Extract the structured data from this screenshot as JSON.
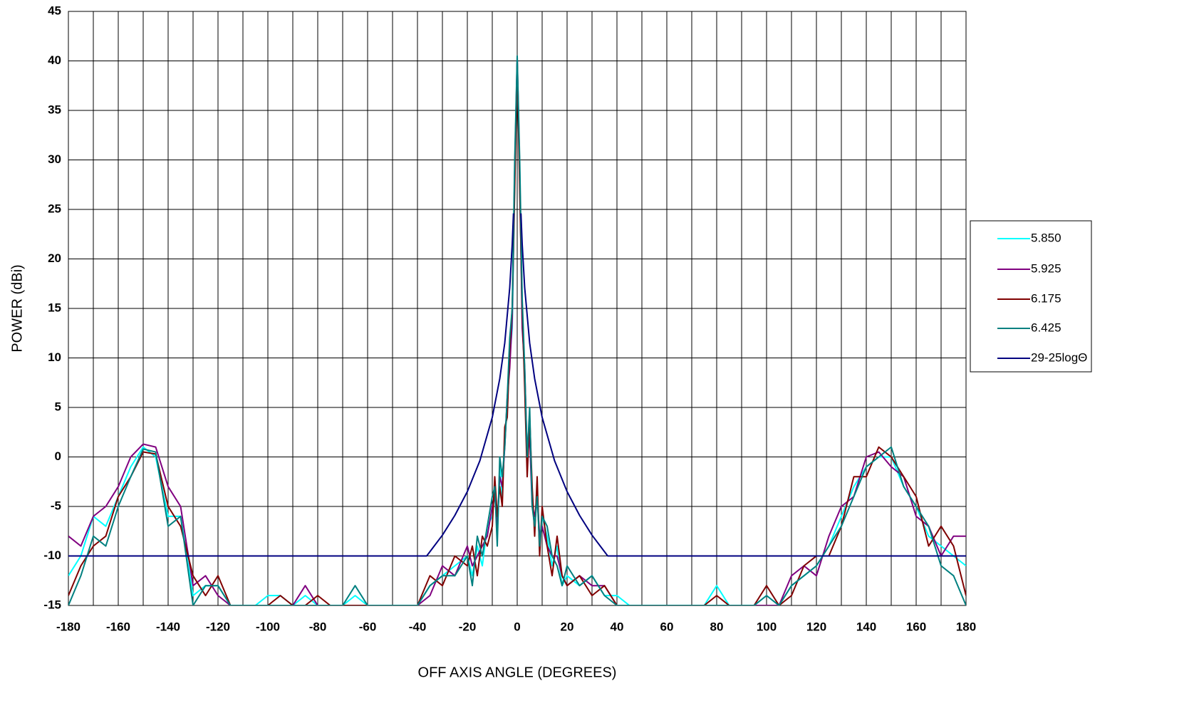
{
  "chart_data": {
    "type": "line",
    "x_label": "OFF AXIS ANGLE (DEGREES)",
    "y_label": "POWER (dBi)",
    "x": [
      -180,
      -175,
      -170,
      -165,
      -160,
      -155,
      -150,
      -145,
      -140,
      -135,
      -130,
      -125,
      -120,
      -115,
      -110,
      -105,
      -100,
      -95,
      -90,
      -85,
      -80,
      -75,
      -70,
      -65,
      -60,
      -55,
      -50,
      -45,
      -40,
      -35,
      -30,
      -25,
      -20,
      -18,
      -16,
      -14,
      -12,
      -10,
      -9,
      -8,
      -7,
      -6,
      -5,
      -4,
      -3,
      -2,
      -1,
      0,
      1,
      2,
      3,
      4,
      5,
      6,
      7,
      8,
      9,
      10,
      12,
      14,
      16,
      18,
      20,
      25,
      30,
      35,
      40,
      45,
      50,
      55,
      60,
      65,
      70,
      75,
      80,
      85,
      90,
      95,
      100,
      105,
      110,
      115,
      120,
      125,
      130,
      135,
      140,
      145,
      150,
      155,
      160,
      165,
      170,
      175,
      180
    ],
    "series": [
      {
        "name": "5.850",
        "color": "#00ffff",
        "values": [
          -12,
          -10,
          -6,
          -7,
          -4,
          -1,
          1,
          0,
          -6,
          -6,
          -14,
          -13,
          -13,
          -15,
          -15,
          -15,
          -14,
          -14,
          -15,
          -14,
          -15,
          -15,
          -15,
          -14,
          -15,
          -15,
          -15,
          -15,
          -15,
          -13,
          -12,
          -11,
          -10,
          -12,
          -9,
          -11,
          -7,
          -6,
          -3,
          -8,
          -1,
          -4,
          2,
          5,
          10,
          13,
          28,
          40,
          28,
          14,
          8,
          -1,
          3,
          -4,
          -7,
          -3,
          -9,
          -6,
          -8,
          -11,
          -9,
          -13,
          -12,
          -13,
          -12,
          -14,
          -14,
          -15,
          -15,
          -15,
          -15,
          -15,
          -15,
          -15,
          -13,
          -15,
          -15,
          -15,
          -14,
          -15,
          -13,
          -12,
          -11,
          -9,
          -6,
          -3,
          -1,
          0,
          0,
          -3,
          -5,
          -8,
          -9,
          -10,
          -11
        ]
      },
      {
        "name": "5.925",
        "color": "#800080",
        "values": [
          -8,
          -9,
          -6,
          -5,
          -3,
          0,
          1.3,
          1,
          -3,
          -5,
          -13,
          -12,
          -14,
          -15,
          -15,
          -15,
          -15,
          -15,
          -15,
          -13,
          -15,
          -15,
          -15,
          -15,
          -15,
          -15,
          -15,
          -15,
          -15,
          -14,
          -11,
          -12,
          -9,
          -11,
          -10,
          -9,
          -8,
          -5,
          -4,
          -7,
          -2,
          -3,
          1,
          6,
          9,
          14,
          29,
          40.3,
          29,
          13,
          9,
          0,
          2,
          -5,
          -6,
          -4,
          -8,
          -7,
          -9,
          -10,
          -10,
          -12,
          -13,
          -12,
          -13,
          -13,
          -15,
          -15,
          -15,
          -15,
          -15,
          -15,
          -15,
          -15,
          -15,
          -15,
          -15,
          -15,
          -15,
          -15,
          -12,
          -11,
          -12,
          -8,
          -5,
          -4,
          0,
          0.5,
          -1,
          -2,
          -6,
          -7,
          -10,
          -8,
          -8
        ]
      },
      {
        "name": "6.175",
        "color": "#800000",
        "values": [
          -14,
          -11,
          -9,
          -8,
          -4,
          -2,
          0.5,
          0.3,
          -5,
          -7,
          -12,
          -14,
          -12,
          -15,
          -15,
          -15,
          -15,
          -14,
          -15,
          -15,
          -14,
          -15,
          -15,
          -15,
          -15,
          -15,
          -15,
          -15,
          -15,
          -12,
          -13,
          -10,
          -11,
          -9,
          -12,
          -8,
          -9,
          -7,
          -2,
          -6,
          -3,
          -5,
          3,
          4,
          11,
          15,
          27,
          40,
          27,
          15,
          7,
          -2,
          4,
          -3,
          -8,
          -2,
          -10,
          -5,
          -9,
          -12,
          -8,
          -12,
          -13,
          -12,
          -14,
          -13,
          -15,
          -15,
          -15,
          -15,
          -15,
          -15,
          -15,
          -15,
          -14,
          -15,
          -15,
          -15,
          -13,
          -15,
          -14,
          -11,
          -10,
          -10,
          -7,
          -2,
          -2,
          1,
          0,
          -2,
          -4,
          -9,
          -7,
          -9,
          -14
        ]
      },
      {
        "name": "6.425",
        "color": "#008080",
        "values": [
          -15,
          -12,
          -8,
          -9,
          -5,
          -2,
          0.8,
          0.5,
          -7,
          -6,
          -15,
          -13,
          -13,
          -15,
          -15,
          -15,
          -15,
          -15,
          -15,
          -15,
          -15,
          -15,
          -15,
          -13,
          -15,
          -15,
          -15,
          -15,
          -15,
          -13,
          -12,
          -12,
          -10,
          -13,
          -8,
          -10,
          -7,
          -4,
          -3,
          -9,
          0,
          -2,
          1,
          6,
          12,
          15,
          30,
          40.5,
          30,
          16,
          9,
          0,
          5,
          -5,
          -7,
          -4,
          -9,
          -6,
          -7,
          -10,
          -11,
          -13,
          -11,
          -13,
          -12,
          -14,
          -15,
          -15,
          -15,
          -15,
          -15,
          -15,
          -15,
          -15,
          -15,
          -15,
          -15,
          -15,
          -14,
          -15,
          -13,
          -12,
          -11,
          -9,
          -7,
          -4,
          -1,
          0,
          1,
          -3,
          -5,
          -7,
          -11,
          -12,
          -15
        ]
      },
      {
        "name": "29-25logΘ",
        "color": "#000080",
        "x": [
          -180,
          -36.3,
          -30,
          -25,
          -20,
          -15,
          -10,
          -7,
          -5,
          -3,
          -2,
          -1.5,
          0,
          1.5,
          2,
          3,
          5,
          7,
          10,
          15,
          20,
          25,
          30,
          36.3,
          180
        ],
        "values": [
          -10,
          -10,
          -7.9,
          -5.9,
          -3.5,
          -0.4,
          4,
          7.9,
          11.5,
          17.1,
          21.5,
          24.6,
          null,
          24.6,
          21.5,
          17.1,
          11.5,
          7.9,
          4,
          -0.4,
          -3.5,
          -5.9,
          -7.9,
          -10,
          -10
        ]
      }
    ],
    "xlim": [
      -180,
      180
    ],
    "xticks": [
      -180,
      -160,
      -140,
      -120,
      -100,
      -80,
      -60,
      -40,
      -20,
      0,
      20,
      40,
      60,
      80,
      100,
      120,
      140,
      160,
      180
    ],
    "x_minor_grid": [
      -170,
      -150,
      -130,
      -110,
      -90,
      -70,
      -50,
      -30,
      -10,
      10,
      30,
      50,
      70,
      90,
      110,
      130,
      150,
      170
    ],
    "ylim": [
      -15,
      45
    ],
    "yticks": [
      -15,
      -10,
      -5,
      0,
      5,
      10,
      15,
      20,
      25,
      30,
      35,
      40,
      45
    ],
    "grid": true,
    "legend": "right"
  }
}
